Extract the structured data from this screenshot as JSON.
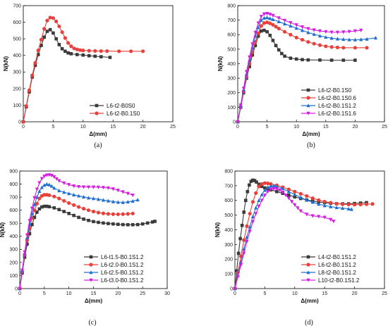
{
  "chart_data": [
    {
      "type": "line",
      "panel": "(a)",
      "xlabel": "Δ(mm)",
      "ylabel": "N(kN)",
      "xlim": [
        0,
        25
      ],
      "ylim": [
        0,
        700
      ],
      "xticks": [
        "0",
        "5",
        "10",
        "15",
        "20",
        "25"
      ],
      "yticks": [
        "0",
        "100",
        "200",
        "300",
        "400",
        "500",
        "600",
        "700"
      ],
      "legend_position": "lower-right",
      "series": [
        {
          "name": "L6-t2-B0S0",
          "color": "#3a3a3a",
          "marker": "square",
          "x": [
            0,
            0.5,
            1.0,
            1.5,
            2.0,
            2.5,
            3.0,
            3.5,
            4.0,
            4.5,
            5.0,
            5.5,
            6.0,
            6.5,
            7.0,
            7.5,
            8.0,
            9.0,
            10.0,
            11.0,
            12.0,
            13.0,
            14.5
          ],
          "y": [
            0,
            90,
            180,
            270,
            340,
            405,
            460,
            510,
            545,
            555,
            535,
            500,
            465,
            440,
            425,
            415,
            410,
            405,
            402,
            398,
            395,
            392,
            388
          ]
        },
        {
          "name": "L6-t2-B0.1S0",
          "color": "#e8413c",
          "marker": "circle",
          "x": [
            0,
            0.5,
            1.0,
            1.5,
            2.0,
            2.5,
            3.0,
            3.5,
            4.0,
            4.5,
            5.0,
            5.5,
            6.0,
            6.5,
            7.0,
            7.5,
            8.0,
            8.5,
            9.0,
            9.5,
            10.0,
            11.0,
            12.0,
            13.0,
            14.0,
            16.0,
            18.0,
            20.0
          ],
          "y": [
            0,
            95,
            190,
            280,
            355,
            430,
            495,
            560,
            610,
            628,
            625,
            605,
            575,
            540,
            505,
            475,
            455,
            442,
            436,
            432,
            430,
            428,
            427,
            426,
            426,
            425,
            425,
            425
          ]
        }
      ]
    },
    {
      "type": "line",
      "panel": "(b)",
      "xlabel": "Δ(mm)",
      "ylabel": "N(kN)",
      "xlim": [
        0,
        25
      ],
      "ylim": [
        0,
        800
      ],
      "xticks": [
        "0",
        "5",
        "10",
        "15",
        "20",
        "25"
      ],
      "yticks": [
        "0",
        "100",
        "200",
        "300",
        "400",
        "500",
        "600",
        "700",
        "800"
      ],
      "legend_position": "lower-right",
      "series": [
        {
          "name": "L6-t2-B0.1S0",
          "color": "#3a3a3a",
          "marker": "square",
          "x": [
            0,
            0.5,
            1.0,
            1.5,
            2.0,
            2.5,
            3.0,
            3.5,
            4.0,
            4.5,
            5.0,
            5.5,
            6.0,
            6.5,
            7.0,
            7.5,
            8.0,
            9.0,
            10.0,
            11.0,
            12.0,
            14.0,
            16.0,
            18.0,
            20.0
          ],
          "y": [
            0,
            100,
            200,
            300,
            380,
            460,
            525,
            590,
            625,
            630,
            620,
            595,
            560,
            525,
            495,
            470,
            452,
            438,
            432,
            428,
            426,
            425,
            424,
            424,
            424
          ]
        },
        {
          "name": "L6-t2-B0.1S0.6",
          "color": "#e8413c",
          "marker": "circle",
          "x": [
            0,
            0.5,
            1.0,
            1.5,
            2.0,
            2.5,
            3.0,
            3.5,
            4.0,
            4.5,
            5.0,
            5.5,
            6.0,
            6.5,
            7.0,
            8.0,
            9.0,
            10.0,
            11.0,
            12.0,
            13.0,
            14.0,
            15.0,
            16.0,
            17.0,
            18.0,
            20.0,
            22.0
          ],
          "y": [
            0,
            105,
            210,
            310,
            400,
            480,
            550,
            610,
            660,
            680,
            685,
            678,
            668,
            655,
            642,
            620,
            600,
            580,
            565,
            550,
            538,
            528,
            520,
            515,
            512,
            510,
            510,
            510
          ]
        },
        {
          "name": "L6-t2-B0.1S1.2",
          "color": "#1f6fd1",
          "marker": "triangle",
          "x": [
            0,
            0.5,
            1.0,
            1.5,
            2.0,
            2.5,
            3.0,
            3.5,
            4.0,
            4.5,
            5.0,
            5.5,
            6.0,
            7.0,
            8.0,
            9.0,
            10.0,
            11.0,
            12.0,
            13.0,
            14.0,
            15.0,
            16.0,
            17.0,
            18.0,
            19.0,
            20.0,
            21.0,
            22.0,
            23.5
          ],
          "y": [
            0,
            110,
            220,
            330,
            425,
            510,
            590,
            650,
            700,
            715,
            718,
            712,
            705,
            690,
            675,
            660,
            645,
            630,
            615,
            603,
            592,
            583,
            576,
            571,
            568,
            566,
            565,
            567,
            570,
            578
          ]
        },
        {
          "name": "L6-t2-B0.1S1.6",
          "color": "#d41ee0",
          "marker": "triangle-down",
          "x": [
            0,
            0.5,
            1.0,
            1.5,
            2.0,
            2.5,
            3.0,
            3.5,
            4.0,
            4.5,
            5.0,
            5.5,
            6.0,
            7.0,
            8.0,
            9.0,
            10.0,
            11.0,
            12.0,
            13.0,
            14.0,
            15.0,
            16.0,
            17.0,
            18.0,
            19.0,
            20.0,
            21.0
          ],
          "y": [
            0,
            115,
            230,
            345,
            445,
            535,
            615,
            680,
            725,
            742,
            745,
            740,
            732,
            715,
            698,
            682,
            667,
            653,
            641,
            632,
            625,
            620,
            617,
            616,
            618,
            621,
            625,
            630
          ]
        }
      ]
    },
    {
      "type": "line",
      "panel": "(c)",
      "xlabel": "Δ(mm)",
      "ylabel": "N(kN)",
      "xlim": [
        0,
        30
      ],
      "ylim": [
        0,
        900
      ],
      "xticks": [
        "0",
        "5",
        "10",
        "15",
        "20",
        "25",
        "30"
      ],
      "yticks": [
        "0",
        "100",
        "200",
        "300",
        "400",
        "500",
        "600",
        "700",
        "800",
        "900"
      ],
      "legend_position": "lower-right",
      "series": [
        {
          "name": "L6-t1.5-B0.1S1.2",
          "color": "#3a3a3a",
          "marker": "square",
          "x": [
            0,
            0.5,
            1.0,
            1.5,
            2.0,
            2.5,
            3.0,
            3.5,
            4.0,
            4.5,
            5.0,
            5.5,
            6.0,
            7.0,
            8.0,
            9.0,
            10.0,
            11.0,
            12.0,
            13.0,
            14.0,
            15.0,
            16.0,
            17.0,
            18.0,
            19.0,
            20.0,
            21.0,
            22.0,
            23.0,
            24.0,
            25.0,
            26.0,
            27.0,
            27.5
          ],
          "y": [
            0,
            120,
            240,
            340,
            420,
            490,
            545,
            585,
            610,
            625,
            630,
            630,
            627,
            618,
            605,
            590,
            575,
            560,
            545,
            532,
            522,
            513,
            507,
            502,
            498,
            495,
            492,
            490,
            489,
            489,
            490,
            495,
            502,
            510,
            515
          ]
        },
        {
          "name": "L6-t2.0-B0.1S1.2",
          "color": "#e8413c",
          "marker": "circle",
          "x": [
            0,
            0.5,
            1.0,
            1.5,
            2.0,
            2.5,
            3.0,
            3.5,
            4.0,
            4.5,
            5.0,
            5.5,
            6.0,
            7.0,
            8.0,
            9.0,
            10.0,
            11.0,
            12.0,
            13.0,
            14.0,
            15.0,
            16.0,
            17.0,
            18.0,
            19.0,
            20.0,
            21.0,
            22.0,
            23.0
          ],
          "y": [
            0,
            130,
            260,
            370,
            460,
            540,
            600,
            650,
            690,
            710,
            718,
            718,
            715,
            705,
            690,
            672,
            655,
            640,
            625,
            612,
            600,
            590,
            582,
            576,
            572,
            570,
            569,
            570,
            572,
            575
          ]
        },
        {
          "name": "L6-t2.5-B0.1S1.2",
          "color": "#1f6fd1",
          "marker": "triangle",
          "x": [
            0,
            0.5,
            1.0,
            1.5,
            2.0,
            2.5,
            3.0,
            3.5,
            4.0,
            4.5,
            5.0,
            5.5,
            6.0,
            6.5,
            7.0,
            8.0,
            9.0,
            10.0,
            11.0,
            12.0,
            13.0,
            14.0,
            15.0,
            16.0,
            17.0,
            18.0,
            19.0,
            20.0,
            21.0,
            22.0,
            23.0,
            24.0
          ],
          "y": [
            0,
            135,
            270,
            390,
            490,
            575,
            645,
            700,
            745,
            775,
            792,
            800,
            795,
            785,
            770,
            750,
            738,
            728,
            718,
            710,
            702,
            695,
            690,
            684,
            678,
            672,
            666,
            662,
            660,
            664,
            670,
            680
          ]
        },
        {
          "name": "L6-t3.0-B0.1S1.2",
          "color": "#d41ee0",
          "marker": "triangle-down",
          "x": [
            0,
            0.5,
            1.0,
            1.5,
            2.0,
            2.5,
            3.0,
            3.5,
            4.0,
            4.5,
            5.0,
            5.5,
            6.0,
            6.5,
            7.0,
            7.5,
            8.0,
            9.0,
            10.0,
            11.0,
            12.0,
            13.0,
            14.0,
            15.0,
            16.0,
            17.0,
            18.0,
            19.0,
            20.0,
            21.0,
            22.0,
            23.0
          ],
          "y": [
            0,
            140,
            280,
            410,
            520,
            615,
            695,
            760,
            810,
            842,
            860,
            868,
            870,
            866,
            855,
            840,
            825,
            808,
            795,
            785,
            780,
            778,
            777,
            777,
            776,
            774,
            770,
            763,
            752,
            740,
            728,
            715
          ]
        }
      ]
    },
    {
      "type": "line",
      "panel": "(d)",
      "xlabel": "Δ(mm)",
      "ylabel": "N(kN)",
      "xlim": [
        0,
        25
      ],
      "ylim": [
        0,
        800
      ],
      "xticks": [
        "0",
        "5",
        "10",
        "15",
        "20",
        "25"
      ],
      "yticks": [
        "0",
        "100",
        "200",
        "300",
        "400",
        "500",
        "600",
        "700",
        "800"
      ],
      "legend_position": "lower-right",
      "series": [
        {
          "name": "L4-t2-B0.1S1.2",
          "color": "#3a3a3a",
          "marker": "square",
          "x": [
            0,
            0.3,
            0.6,
            0.9,
            1.2,
            1.5,
            1.8,
            2.1,
            2.4,
            2.7,
            3.0,
            3.3,
            3.6,
            4.0,
            4.5,
            5.0,
            5.5,
            6.0,
            7.0,
            8.0,
            9.0,
            10.0,
            11.0,
            12.0,
            13.0,
            14.0,
            15.0,
            16.0,
            17.0,
            18.0,
            19.0,
            20.0,
            21.0,
            22.0
          ],
          "y": [
            0,
            120,
            240,
            340,
            430,
            520,
            600,
            660,
            705,
            730,
            738,
            735,
            725,
            710,
            695,
            685,
            678,
            672,
            660,
            648,
            636,
            624,
            613,
            603,
            596,
            590,
            585,
            581,
            578,
            577,
            577,
            579,
            582,
            585
          ]
        },
        {
          "name": "L6-t2-B0.1S1.2",
          "color": "#e8413c",
          "marker": "circle",
          "x": [
            0,
            0.5,
            1.0,
            1.5,
            2.0,
            2.5,
            3.0,
            3.5,
            4.0,
            4.5,
            5.0,
            5.5,
            6.0,
            7.0,
            8.0,
            9.0,
            10.0,
            11.0,
            12.0,
            13.0,
            14.0,
            15.0,
            16.0,
            17.0,
            18.0,
            19.0,
            20.0,
            21.0,
            22.0,
            23.0
          ],
          "y": [
            0,
            110,
            220,
            330,
            425,
            510,
            590,
            650,
            695,
            712,
            718,
            716,
            712,
            703,
            690,
            675,
            660,
            645,
            630,
            615,
            602,
            592,
            584,
            578,
            574,
            572,
            571,
            572,
            574,
            576
          ]
        },
        {
          "name": "L8-t2-B0.1S1.2",
          "color": "#1f6fd1",
          "marker": "triangle",
          "x": [
            0,
            0.5,
            1.0,
            1.5,
            2.0,
            2.5,
            3.0,
            3.5,
            4.0,
            4.5,
            5.0,
            5.5,
            6.0,
            6.5,
            7.0,
            8.0,
            9.0,
            10.0,
            11.0,
            12.0,
            13.0,
            14.0,
            15.0,
            16.0,
            17.0,
            18.0,
            19.0,
            19.5
          ],
          "y": [
            0,
            90,
            180,
            270,
            350,
            420,
            490,
            550,
            600,
            640,
            670,
            690,
            698,
            700,
            695,
            680,
            660,
            640,
            620,
            602,
            588,
            575,
            565,
            558,
            552,
            547,
            543,
            540
          ]
        },
        {
          "name": "L10-t2-B0.1S1.2",
          "color": "#d41ee0",
          "marker": "triangle-down",
          "x": [
            0,
            0.5,
            1.0,
            1.5,
            2.0,
            2.5,
            3.0,
            3.5,
            4.0,
            4.5,
            5.0,
            5.5,
            6.0,
            6.5,
            7.0,
            7.5,
            8.0,
            8.5,
            9.0,
            9.5,
            10.0,
            10.5,
            11.0,
            12.0,
            13.0,
            14.0,
            15.0,
            16.0,
            16.5
          ],
          "y": [
            0,
            80,
            160,
            240,
            320,
            390,
            455,
            510,
            560,
            600,
            635,
            660,
            675,
            680,
            678,
            670,
            655,
            635,
            615,
            592,
            570,
            548,
            528,
            505,
            495,
            490,
            485,
            470,
            458
          ]
        }
      ]
    }
  ]
}
